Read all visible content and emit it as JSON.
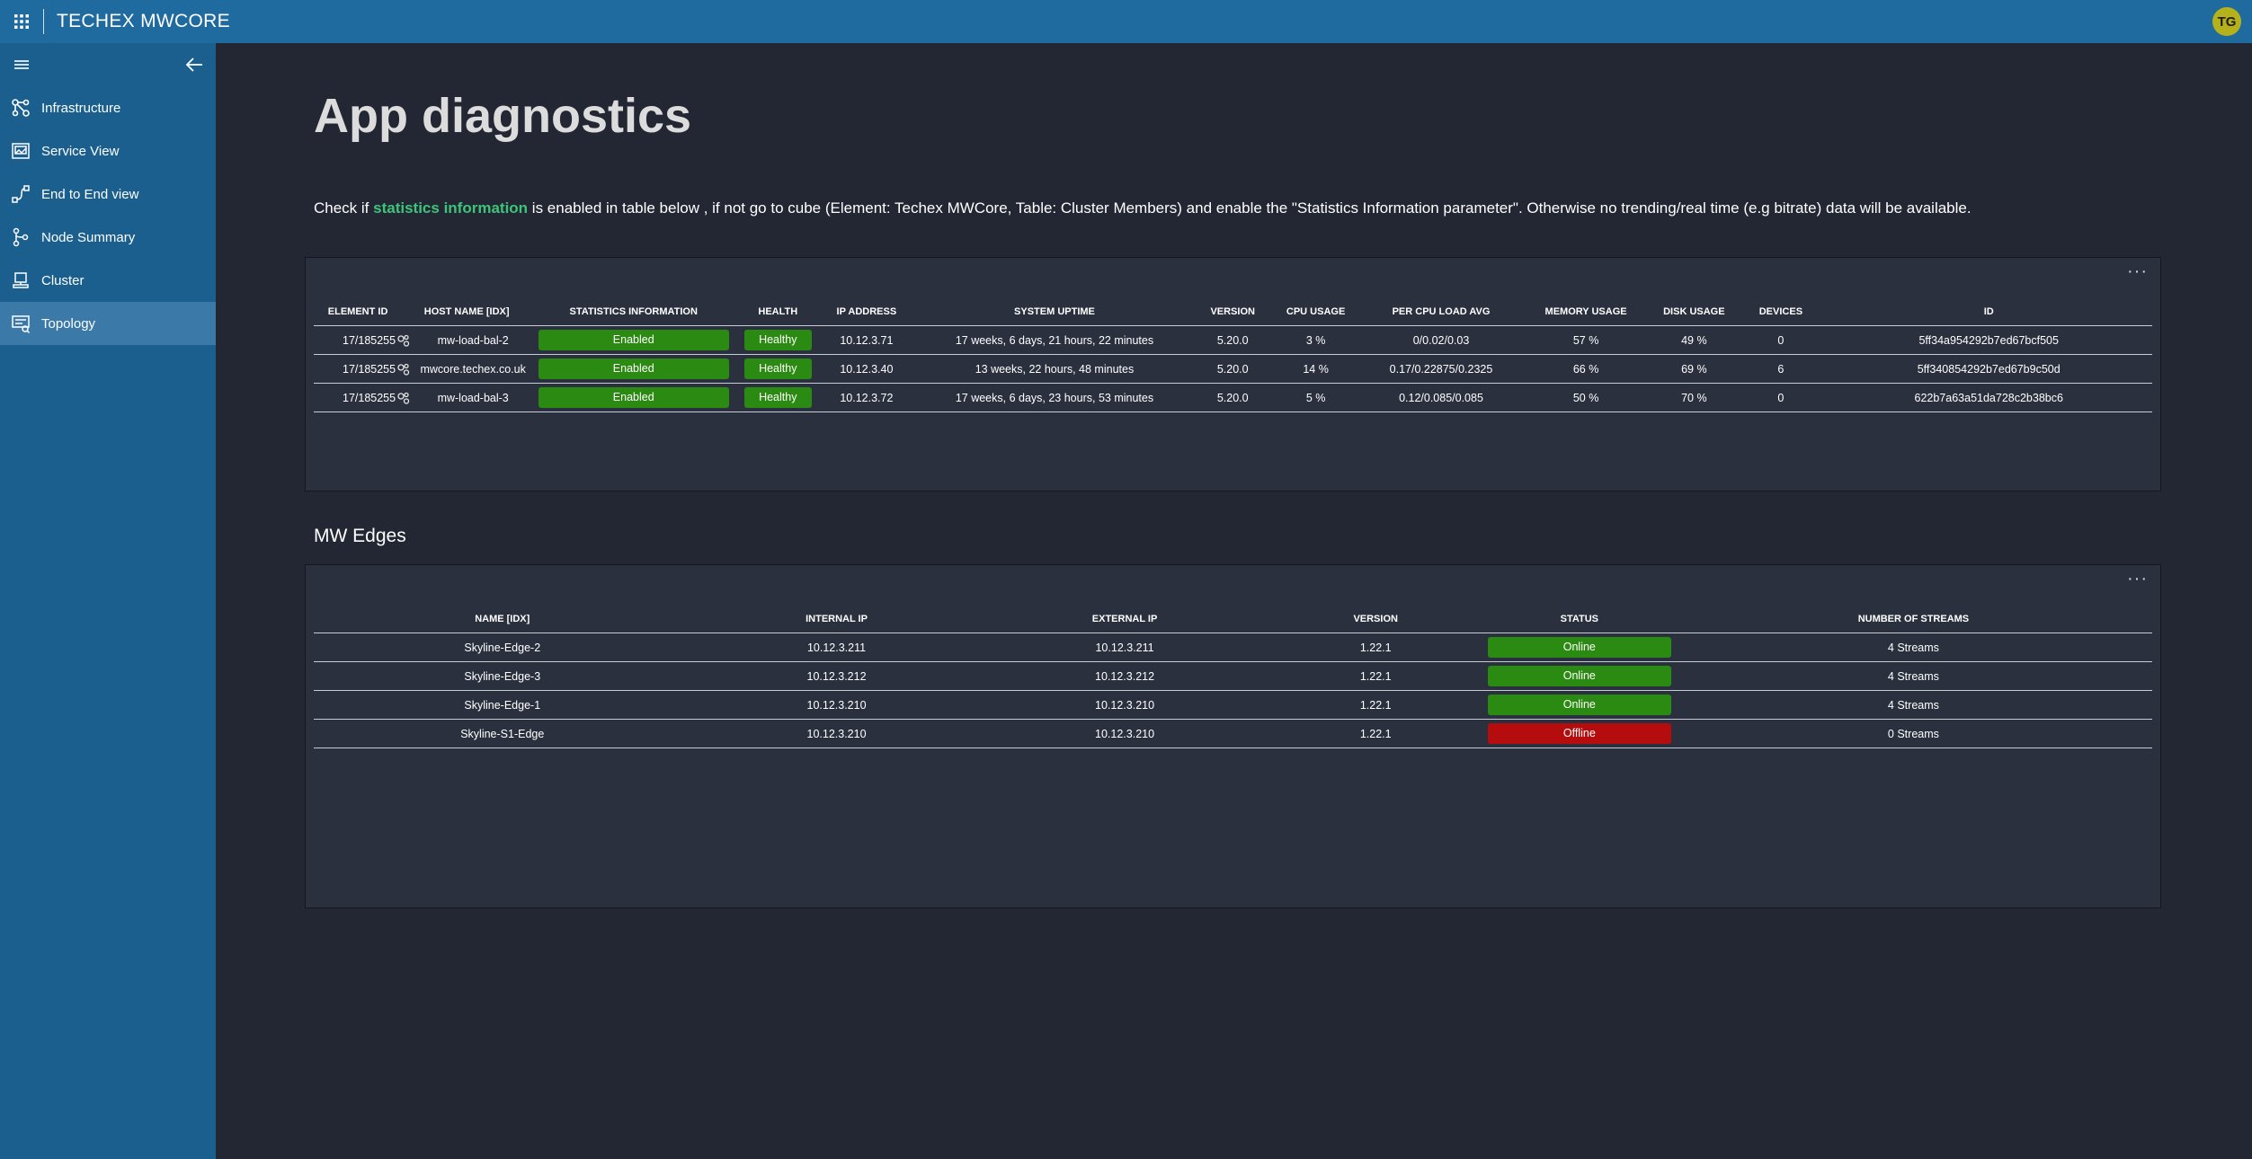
{
  "app": {
    "title": "TECHEX MWCORE",
    "avatar_initials": "TG",
    "accent": "#1f6a9e"
  },
  "sidebar": {
    "items": [
      {
        "label": "Infrastructure",
        "icon": "infrastructure-icon"
      },
      {
        "label": "Service View",
        "icon": "service-view-icon"
      },
      {
        "label": "End to End view",
        "icon": "end-to-end-icon"
      },
      {
        "label": "Node Summary",
        "icon": "node-summary-icon"
      },
      {
        "label": "Cluster",
        "icon": "cluster-icon"
      },
      {
        "label": "Topology",
        "icon": "topology-icon",
        "active": true
      }
    ]
  },
  "main": {
    "title": "App diagnostics",
    "info": {
      "prefix": "Check if ",
      "highlight": "statistics information",
      "suffix": " is enabled in table below , if not go to cube (Element: Techex MWCore, Table: Cluster Members) and enable the \"Statistics Information parameter\". Otherwise no trending/real time (e.g bitrate) data will be available."
    },
    "more_label": "···",
    "cluster_table": {
      "columns": [
        "ELEMENT ID",
        "HOST NAME [IDX]",
        "STATISTICS INFORMATION",
        "HEALTH",
        "IP ADDRESS",
        "SYSTEM UPTIME",
        "VERSION",
        "CPU USAGE",
        "PER CPU LOAD AVG",
        "MEMORY USAGE",
        "DISK USAGE",
        "DEVICES",
        "ID"
      ],
      "rows": [
        {
          "element_id": "17/185255",
          "host": "mw-load-bal-2",
          "stats": "Enabled",
          "health": "Healthy",
          "ip": "10.12.3.71",
          "uptime": "17 weeks, 6 days, 21 hours, 22 minutes",
          "version": "5.20.0",
          "cpu": "3 %",
          "load": "0/0.02/0.03",
          "memory": "57 %",
          "disk": "49 %",
          "devices": "0",
          "id": "5ff34a954292b7ed67bcf505"
        },
        {
          "element_id": "17/185255",
          "host": "mwcore.techex.co.uk",
          "stats": "Enabled",
          "health": "Healthy",
          "ip": "10.12.3.40",
          "uptime": "13 weeks, 22 hours, 48 minutes",
          "version": "5.20.0",
          "cpu": "14 %",
          "load": "0.17/0.22875/0.2325",
          "memory": "66 %",
          "disk": "69 %",
          "devices": "6",
          "id": "5ff340854292b7ed67b9c50d"
        },
        {
          "element_id": "17/185255",
          "host": "mw-load-bal-3",
          "stats": "Enabled",
          "health": "Healthy",
          "ip": "10.12.3.72",
          "uptime": "17 weeks, 6 days, 23 hours, 53 minutes",
          "version": "5.20.0",
          "cpu": "5 %",
          "load": "0.12/0.085/0.085",
          "memory": "50 %",
          "disk": "70 %",
          "devices": "0",
          "id": "622b7a63a51da728c2b38bc6"
        }
      ]
    },
    "edges_title": "MW Edges",
    "edges_table": {
      "columns": [
        "NAME [IDX]",
        "INTERNAL IP",
        "EXTERNAL IP",
        "VERSION",
        "STATUS",
        "NUMBER OF STREAMS"
      ],
      "rows": [
        {
          "name": "Skyline-Edge-2",
          "internal": "10.12.3.211",
          "external": "10.12.3.211",
          "version": "1.22.1",
          "status": "Online",
          "streams": "4 Streams"
        },
        {
          "name": "Skyline-Edge-3",
          "internal": "10.12.3.212",
          "external": "10.12.3.212",
          "version": "1.22.1",
          "status": "Online",
          "streams": "4 Streams"
        },
        {
          "name": "Skyline-Edge-1",
          "internal": "10.12.3.210",
          "external": "10.12.3.210",
          "version": "1.22.1",
          "status": "Online",
          "streams": "4 Streams"
        },
        {
          "name": "Skyline-S1-Edge",
          "internal": "10.12.3.210",
          "external": "10.12.3.210",
          "version": "1.22.1",
          "status": "Offline",
          "streams": "0 Streams"
        }
      ]
    }
  },
  "colors": {
    "ok": "#2b8a12",
    "error": "#b50d0d",
    "highlight": "#3ec47a"
  }
}
